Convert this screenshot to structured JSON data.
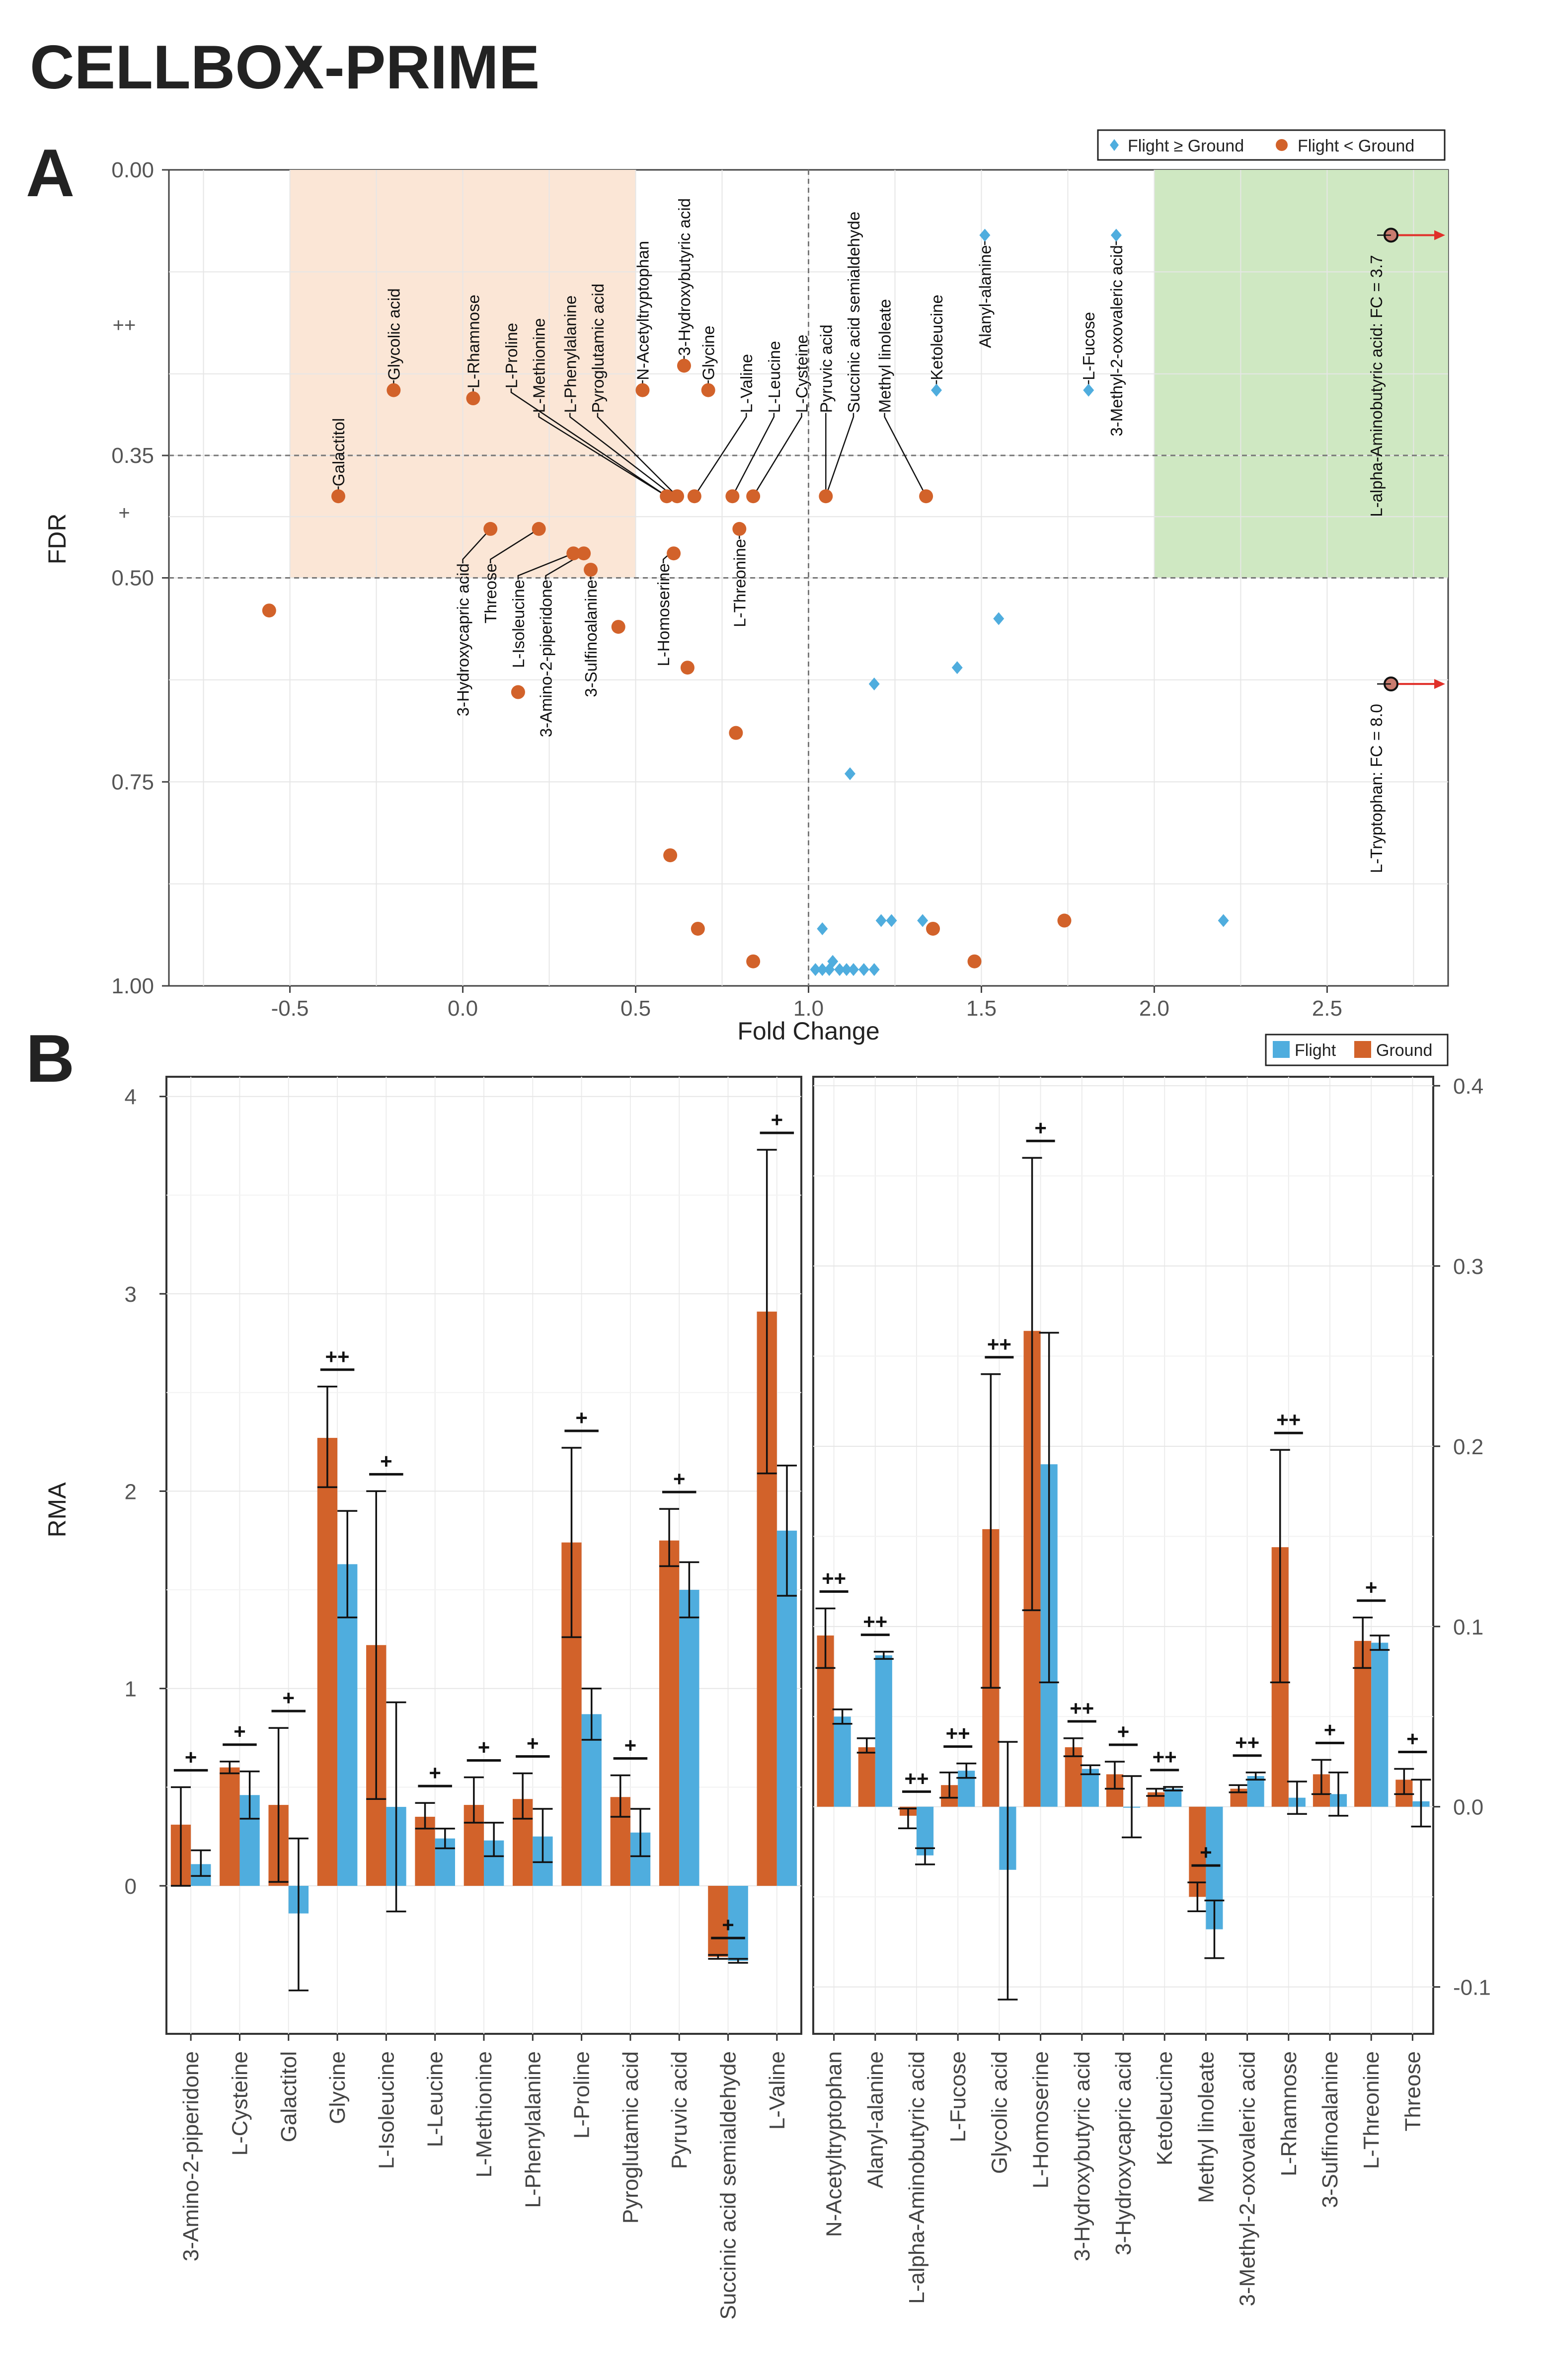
{
  "figure": {
    "title": "CELLBOX-PRIME",
    "panel_a_letter": "A",
    "panel_b_letter": "B"
  },
  "colors": {
    "flight": "#4fadde",
    "ground": "#d2622a",
    "sig_zone_green": "#cfe8c2",
    "sig_zone_orange": "#fbe6d6",
    "arrow": "#e0302a",
    "axis_text": "#555555"
  },
  "chart_data": [
    {
      "type": "scatter",
      "panel": "A",
      "xlabel": "Fold Change",
      "ylabel": "FDR",
      "xlim": [
        -0.85,
        2.85
      ],
      "ylim": [
        0.0,
        1.0
      ],
      "y_reversed": true,
      "x_ticks": [
        "-0.5",
        "0.0",
        "0.5",
        "1.0",
        "1.5",
        "2.0",
        "2.5"
      ],
      "x_tick_values": [
        -0.5,
        0.0,
        0.5,
        1.0,
        1.5,
        2.0,
        2.5
      ],
      "y_ticks": [
        "0.00",
        "0.35",
        "0.50",
        "0.75",
        "1.00"
      ],
      "y_tick_values": [
        0.0,
        0.35,
        0.5,
        0.75,
        1.0
      ],
      "y_sig_labels": [
        {
          "text": "++",
          "y": 0.19
        },
        {
          "text": "+",
          "y": 0.42
        }
      ],
      "hlines": [
        0.35,
        0.5
      ],
      "vline": 1.0,
      "shaded_regions": [
        {
          "color_key": "sig_zone_orange",
          "x": [
            -0.5,
            0.5
          ],
          "y": [
            0.0,
            0.5
          ]
        },
        {
          "color_key": "sig_zone_green",
          "x": [
            2.0,
            2.85
          ],
          "y": [
            0.0,
            0.5
          ]
        }
      ],
      "legend": [
        {
          "label": "Flight ≥ Ground",
          "marker": "diamond",
          "color_key": "flight"
        },
        {
          "label": "Flight < Ground",
          "marker": "circle",
          "color_key": "ground"
        }
      ],
      "legend_position": "top-right",
      "ground_points": [
        [
          -0.56,
          0.54
        ],
        [
          -0.36,
          0.4
        ],
        [
          -0.2,
          0.27
        ],
        [
          0.03,
          0.28
        ],
        [
          0.08,
          0.44
        ],
        [
          0.22,
          0.44
        ],
        [
          0.16,
          0.64
        ],
        [
          0.32,
          0.47
        ],
        [
          0.35,
          0.47
        ],
        [
          0.37,
          0.49
        ],
        [
          0.45,
          0.56
        ],
        [
          0.52,
          0.27
        ],
        [
          0.59,
          0.4
        ],
        [
          0.61,
          0.47
        ],
        [
          0.62,
          0.4
        ],
        [
          0.64,
          0.24
        ],
        [
          0.65,
          0.61
        ],
        [
          0.67,
          0.4
        ],
        [
          0.71,
          0.27
        ],
        [
          0.78,
          0.4
        ],
        [
          0.8,
          0.44
        ],
        [
          0.79,
          0.69
        ],
        [
          0.6,
          0.84
        ],
        [
          0.68,
          0.93
        ],
        [
          0.84,
          0.97
        ],
        [
          0.84,
          0.4
        ],
        [
          1.05,
          0.4
        ],
        [
          1.34,
          0.4
        ],
        [
          1.36,
          0.93
        ],
        [
          1.48,
          0.97
        ],
        [
          1.74,
          0.92
        ]
      ],
      "flight_points": [
        [
          1.37,
          0.27
        ],
        [
          1.51,
          0.08
        ],
        [
          1.81,
          0.27
        ],
        [
          1.89,
          0.08
        ],
        [
          1.55,
          0.55
        ],
        [
          1.43,
          0.61
        ],
        [
          1.19,
          0.63
        ],
        [
          1.12,
          0.74
        ],
        [
          1.04,
          0.93
        ],
        [
          1.21,
          0.92
        ],
        [
          1.24,
          0.92
        ],
        [
          1.33,
          0.92
        ],
        [
          2.2,
          0.92
        ],
        [
          1.02,
          0.98
        ],
        [
          1.04,
          0.98
        ],
        [
          1.06,
          0.98
        ],
        [
          1.07,
          0.97
        ],
        [
          1.09,
          0.98
        ],
        [
          1.11,
          0.98
        ],
        [
          1.13,
          0.98
        ],
        [
          1.16,
          0.98
        ],
        [
          1.19,
          0.98
        ]
      ],
      "point_labels": [
        {
          "text": "Galactitol",
          "x": -0.36,
          "y": 0.4,
          "above": true
        },
        {
          "text": "Glycolic acid",
          "x": -0.2,
          "y": 0.27,
          "above": true
        },
        {
          "text": "L-Rhamnose",
          "x": 0.03,
          "y": 0.28,
          "above": true
        },
        {
          "text": "L-Proline",
          "x": 0.14,
          "y": 0.28,
          "above": true,
          "px": 0.59,
          "py": 0.4
        },
        {
          "text": "L-Methionine",
          "x": 0.22,
          "y": 0.31,
          "above": true,
          "px": 0.59,
          "py": 0.4
        },
        {
          "text": "L-Phenylalanine",
          "x": 0.31,
          "y": 0.31,
          "above": true,
          "px": 0.61,
          "py": 0.4
        },
        {
          "text": "Pyroglutamic acid",
          "x": 0.39,
          "y": 0.31,
          "above": true,
          "px": 0.62,
          "py": 0.4
        },
        {
          "text": "N-Acetyltryptophan",
          "x": 0.52,
          "y": 0.27,
          "above": true
        },
        {
          "text": "3-Hydroxybutyric acid",
          "x": 0.64,
          "y": 0.24,
          "above": true
        },
        {
          "text": "Glycine",
          "x": 0.71,
          "y": 0.27,
          "above": true
        },
        {
          "text": "L-Valine",
          "x": 0.82,
          "y": 0.31,
          "above": true,
          "px": 0.67,
          "py": 0.4
        },
        {
          "text": "L-Leucine",
          "x": 0.9,
          "y": 0.31,
          "above": true,
          "px": 0.78,
          "py": 0.4
        },
        {
          "text": "L-Cysteine",
          "x": 0.98,
          "y": 0.31,
          "above": true,
          "px": 0.84,
          "py": 0.4
        },
        {
          "text": "Pyruvic acid",
          "x": 1.05,
          "y": 0.31,
          "above": true,
          "px": 1.05,
          "py": 0.4
        },
        {
          "text": "Succinic acid semialdehyde",
          "x": 1.13,
          "y": 0.31,
          "above": true,
          "px": 1.05,
          "py": 0.4
        },
        {
          "text": "Methyl linoleate",
          "x": 1.22,
          "y": 0.31,
          "above": true,
          "px": 1.34,
          "py": 0.4
        },
        {
          "text": "Ketoleucine",
          "x": 1.37,
          "y": 0.27,
          "above": true
        },
        {
          "text": "Alanyl-alanine",
          "x": 1.51,
          "y": 0.08,
          "below": true
        },
        {
          "text": "L-Fucose",
          "x": 1.81,
          "y": 0.27,
          "above": true
        },
        {
          "text": "3-Methyl-2-oxovaleric acid",
          "x": 1.89,
          "y": 0.08,
          "below": true
        },
        {
          "text": "3-Hydroxycapric acid",
          "x": 0.0,
          "y": 0.47,
          "below": true,
          "px": 0.08,
          "py": 0.44
        },
        {
          "text": "Threose",
          "x": 0.08,
          "y": 0.47,
          "below": true,
          "px": 0.22,
          "py": 0.44
        },
        {
          "text": "L-Isoleucine",
          "x": 0.16,
          "y": 0.49,
          "below": true,
          "px": 0.32,
          "py": 0.47
        },
        {
          "text": "3-Amino-2-piperidone",
          "x": 0.24,
          "y": 0.49,
          "below": true,
          "px": 0.35,
          "py": 0.47
        },
        {
          "text": "3-Sulfinoalanine",
          "x": 0.37,
          "y": 0.49,
          "below": true
        },
        {
          "text": "L-Homoserine",
          "x": 0.58,
          "y": 0.47,
          "below": true,
          "px": 0.6,
          "py": 0.47
        },
        {
          "text": "L-Threonine",
          "x": 0.8,
          "y": 0.44,
          "below": true
        }
      ],
      "offscale_points": [
        {
          "text": "L-alpha-Aminobutyric acid: FC = 3.7",
          "y": 0.08
        },
        {
          "text": "L-Tryptophan: FC = 8.0",
          "y": 0.63
        }
      ]
    },
    {
      "type": "bar",
      "panel": "B-left",
      "ylabel": "RMA",
      "ylim": [
        -0.75,
        4.1
      ],
      "y_ticks": [
        "0",
        "1",
        "2",
        "3",
        "4"
      ],
      "y_tick_values": [
        0,
        1,
        2,
        3,
        4
      ],
      "legend": [
        {
          "label": "Flight",
          "color_key": "flight"
        },
        {
          "label": "Ground",
          "color_key": "ground"
        }
      ],
      "legend_position": "top-right",
      "categories": [
        "3-Amino-2-piperidone",
        "L-Cysteine",
        "Galactitol",
        "Glycine",
        "L-Isoleucine",
        "L-Leucine",
        "L-Methionine",
        "L-Phenylalanine",
        "L-Proline",
        "Pyroglutamic acid",
        "Pyruvic acid",
        "Succinic acid semialdehyde",
        "L-Valine"
      ],
      "series": [
        {
          "name": "Ground",
          "values": [
            0.31,
            0.6,
            0.41,
            2.27,
            1.22,
            0.35,
            0.41,
            0.44,
            1.74,
            0.45,
            1.75,
            -0.36,
            2.91
          ],
          "err_low": [
            0.0,
            0.57,
            0.02,
            2.02,
            0.44,
            0.29,
            0.32,
            0.34,
            1.26,
            0.35,
            1.62,
            -0.37,
            2.09
          ],
          "err_high": [
            0.5,
            0.63,
            0.8,
            2.53,
            2.0,
            0.42,
            0.55,
            0.57,
            2.22,
            0.56,
            1.91,
            -0.35,
            3.73
          ]
        },
        {
          "name": "Flight",
          "values": [
            0.11,
            0.46,
            -0.14,
            1.63,
            0.4,
            0.24,
            0.23,
            0.25,
            0.87,
            0.27,
            1.5,
            -0.38,
            1.8
          ],
          "err_low": [
            0.05,
            0.34,
            -0.53,
            1.36,
            -0.13,
            0.19,
            0.15,
            0.12,
            0.74,
            0.15,
            1.36,
            -0.39,
            1.47
          ],
          "err_high": [
            0.18,
            0.58,
            0.24,
            1.9,
            0.93,
            0.29,
            0.32,
            0.39,
            1.0,
            0.39,
            1.64,
            -0.37,
            2.13
          ]
        }
      ],
      "sig_labels": [
        "+",
        "+",
        "+",
        "++",
        "+",
        "+",
        "+",
        "+",
        "+",
        "+",
        "+",
        "+",
        "+"
      ]
    },
    {
      "type": "bar",
      "panel": "B-right",
      "ylabel": "",
      "ylim": [
        -0.126,
        0.405
      ],
      "y_ticks": [
        "-0.1",
        "0.0",
        "0.1",
        "0.2",
        "0.3",
        "0.4"
      ],
      "y_tick_values": [
        -0.1,
        0.0,
        0.1,
        0.2,
        0.3,
        0.4
      ],
      "categories": [
        "N-Acetyltryptophan",
        "Alanyl-alanine",
        "L-alpha-Aminobutyric acid",
        "L-Fucose",
        "Glycolic acid",
        "L-Homoserine",
        "3-Hydroxybutyric acid",
        "3-Hydroxycapric acid",
        "Ketoleucine",
        "Methyl linoleate",
        "3-Methyl-2-oxovaleric acid",
        "L-Rhamnose",
        "3-Sulfinoalanine",
        "L-Threonine",
        "Threose"
      ],
      "series": [
        {
          "name": "Ground",
          "values": [
            0.095,
            0.033,
            -0.005,
            0.012,
            0.154,
            0.264,
            0.033,
            0.018,
            0.008,
            -0.05,
            0.01,
            0.144,
            0.018,
            0.092,
            0.015
          ],
          "err_low": [
            0.077,
            0.03,
            -0.012,
            0.005,
            0.066,
            0.109,
            0.028,
            0.01,
            0.006,
            -0.058,
            0.008,
            0.069,
            0.007,
            0.077,
            0.007
          ],
          "err_high": [
            0.11,
            0.038,
            -0.001,
            0.019,
            0.24,
            0.36,
            0.038,
            0.025,
            0.01,
            -0.042,
            0.012,
            0.198,
            0.026,
            0.105,
            0.021
          ]
        },
        {
          "name": "Flight",
          "values": [
            0.05,
            0.084,
            -0.027,
            0.02,
            -0.035,
            0.19,
            0.021,
            0.0,
            0.01,
            -0.068,
            0.017,
            0.005,
            0.007,
            0.091,
            0.003
          ],
          "err_low": [
            0.046,
            0.082,
            -0.032,
            0.016,
            -0.107,
            0.069,
            0.018,
            -0.017,
            0.009,
            -0.084,
            0.015,
            -0.004,
            -0.005,
            0.087,
            -0.011
          ],
          "err_high": [
            0.054,
            0.086,
            -0.023,
            0.024,
            0.036,
            0.263,
            0.023,
            0.017,
            0.011,
            -0.052,
            0.019,
            0.014,
            0.019,
            0.095,
            0.015
          ]
        }
      ],
      "sig_labels": [
        "++",
        "++",
        "++",
        "++",
        "++",
        "+",
        "++",
        "+",
        "++",
        "+",
        "++",
        "++",
        "+",
        "+",
        "+"
      ]
    }
  ]
}
